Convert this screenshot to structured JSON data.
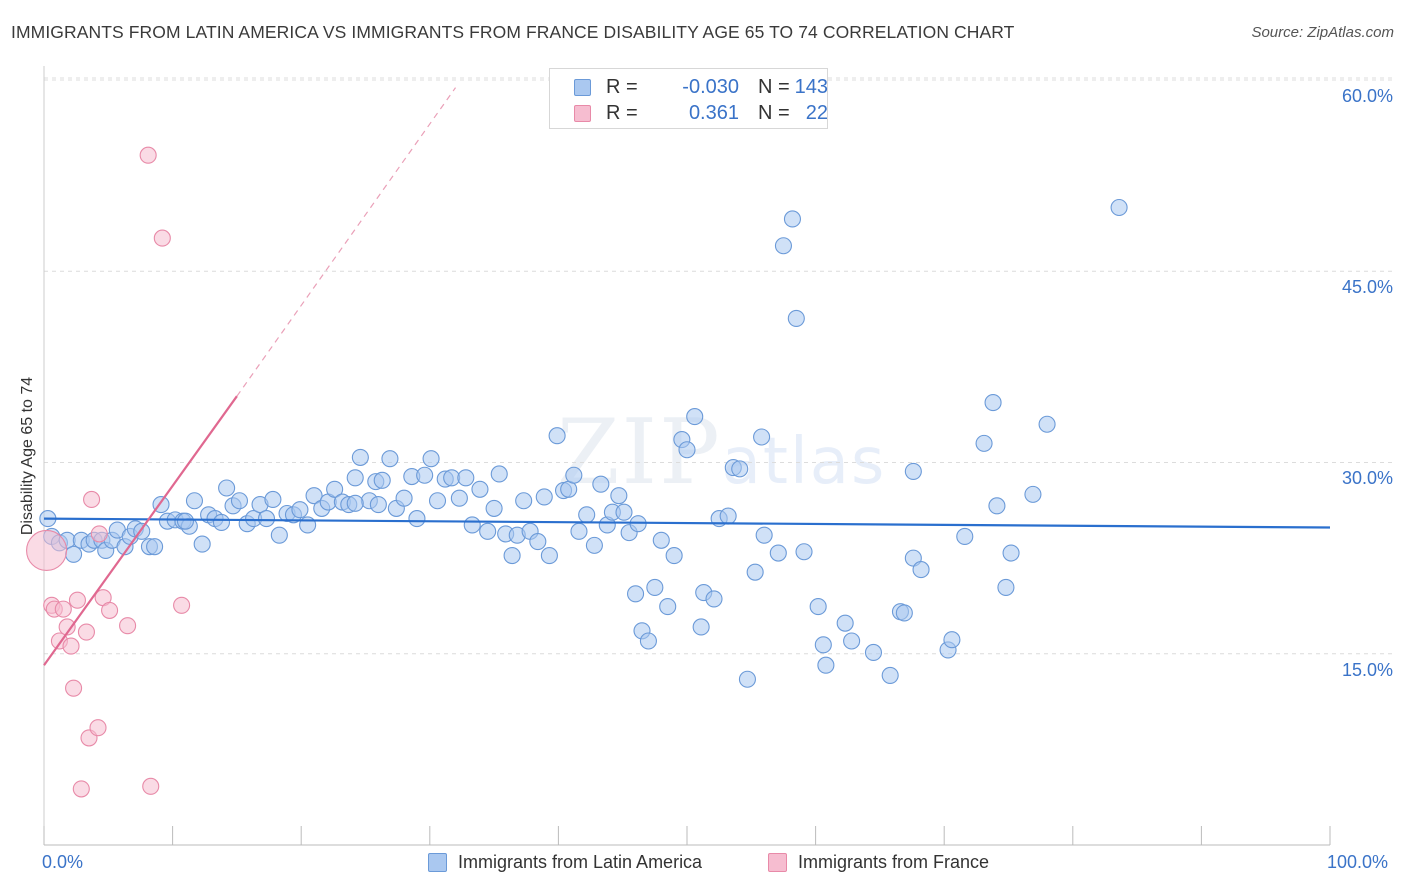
{
  "title": "IMMIGRANTS FROM LATIN AMERICA VS IMMIGRANTS FROM FRANCE DISABILITY AGE 65 TO 74 CORRELATION CHART",
  "source": "Source: ZipAtlas.com",
  "watermark": {
    "zip": "ZIP",
    "atlas": "atlas"
  },
  "legend": {
    "rows": [
      {
        "r_label": "R =",
        "r_value": "-0.030",
        "n_label": "N =",
        "n_value": "143"
      },
      {
        "r_label": "R =",
        "r_value": "0.361",
        "n_label": "N =",
        "n_value": "22"
      }
    ]
  },
  "bottom_legend": {
    "latin": "Immigrants from Latin America",
    "france": "Immigrants from France"
  },
  "colors": {
    "blue_fill": "#aac8f0",
    "blue_stroke": "#6b9ad8",
    "blue_line": "#2a6fce",
    "pink_fill": "#f6bdd0",
    "pink_stroke": "#e88aa8",
    "pink_line": "#e06890",
    "tick_text": "#3a73c8"
  },
  "chart_data": {
    "type": "scatter",
    "title": "IMMIGRANTS FROM LATIN AMERICA VS IMMIGRANTS FROM FRANCE DISABILITY AGE 65 TO 74 CORRELATION CHART",
    "xlabel": "",
    "ylabel": "Disability Age 65 to 74",
    "xlim": [
      0,
      100
    ],
    "ylim": [
      0,
      61.5
    ],
    "x_tick_labels": [
      "0.0%",
      "100.0%"
    ],
    "y_ticks": [
      15,
      30,
      45,
      60
    ],
    "y_tick_labels": [
      "15.0%",
      "30.0%",
      "45.0%",
      "60.0%"
    ],
    "grid": true,
    "legend_position": "top-center",
    "series": [
      {
        "name": "Immigrants from Latin America",
        "color": "#aac8f0",
        "trend": {
          "x0": 0,
          "y0": 25.6,
          "x1": 100,
          "y1": 24.9
        },
        "points": [
          [
            0.3,
            25.6
          ],
          [
            0.6,
            24.2
          ],
          [
            1.2,
            23.7
          ],
          [
            1.8,
            23.9
          ],
          [
            2.3,
            22.8
          ],
          [
            2.9,
            23.9
          ],
          [
            3.5,
            23.6
          ],
          [
            3.9,
            23.9
          ],
          [
            4.5,
            23.9
          ],
          [
            4.8,
            23.1
          ],
          [
            5.3,
            23.9
          ],
          [
            5.7,
            24.7
          ],
          [
            6.3,
            23.4
          ],
          [
            6.7,
            24.2
          ],
          [
            7.1,
            24.8
          ],
          [
            7.6,
            24.6
          ],
          [
            8.2,
            23.4
          ],
          [
            8.6,
            23.4
          ],
          [
            9.1,
            26.7
          ],
          [
            9.6,
            25.4
          ],
          [
            10.2,
            25.5
          ],
          [
            10.8,
            25.4
          ],
          [
            11.3,
            25.0
          ],
          [
            11.7,
            27.0
          ],
          [
            12.3,
            23.6
          ],
          [
            12.8,
            25.9
          ],
          [
            13.3,
            25.6
          ],
          [
            13.8,
            25.3
          ],
          [
            14.2,
            28.0
          ],
          [
            14.7,
            26.6
          ],
          [
            15.2,
            27.0
          ],
          [
            15.8,
            25.2
          ],
          [
            16.3,
            25.6
          ],
          [
            16.8,
            26.7
          ],
          [
            17.3,
            25.6
          ],
          [
            17.8,
            27.1
          ],
          [
            18.3,
            24.3
          ],
          [
            18.9,
            26.0
          ],
          [
            19.4,
            25.9
          ],
          [
            19.9,
            26.3
          ],
          [
            20.5,
            25.1
          ],
          [
            21.0,
            27.4
          ],
          [
            21.6,
            26.4
          ],
          [
            22.1,
            26.9
          ],
          [
            22.6,
            27.9
          ],
          [
            23.2,
            26.9
          ],
          [
            23.7,
            26.7
          ],
          [
            24.2,
            28.8
          ],
          [
            24.6,
            30.4
          ],
          [
            25.3,
            27.0
          ],
          [
            25.8,
            28.5
          ],
          [
            26.3,
            28.6
          ],
          [
            26.9,
            30.3
          ],
          [
            27.4,
            26.4
          ],
          [
            28.0,
            27.2
          ],
          [
            28.6,
            28.9
          ],
          [
            29.0,
            25.6
          ],
          [
            29.6,
            29.0
          ],
          [
            30.1,
            30.3
          ],
          [
            30.6,
            27.0
          ],
          [
            31.2,
            28.7
          ],
          [
            31.7,
            28.8
          ],
          [
            32.3,
            27.2
          ],
          [
            32.8,
            28.8
          ],
          [
            33.3,
            25.1
          ],
          [
            33.9,
            27.9
          ],
          [
            34.5,
            24.6
          ],
          [
            35.0,
            26.4
          ],
          [
            35.4,
            29.1
          ],
          [
            35.9,
            24.4
          ],
          [
            36.4,
            22.7
          ],
          [
            36.8,
            24.3
          ],
          [
            37.3,
            27.0
          ],
          [
            37.8,
            24.6
          ],
          [
            38.4,
            23.8
          ],
          [
            38.9,
            27.3
          ],
          [
            39.3,
            22.7
          ],
          [
            39.9,
            32.1
          ],
          [
            40.4,
            27.8
          ],
          [
            40.8,
            27.9
          ],
          [
            41.2,
            29.0
          ],
          [
            41.6,
            24.6
          ],
          [
            42.2,
            25.9
          ],
          [
            42.8,
            23.5
          ],
          [
            43.3,
            28.3
          ],
          [
            43.8,
            25.1
          ],
          [
            44.2,
            26.1
          ],
          [
            44.7,
            27.4
          ],
          [
            45.1,
            26.1
          ],
          [
            45.5,
            24.5
          ],
          [
            46.0,
            19.7
          ],
          [
            46.2,
            25.2
          ],
          [
            46.5,
            16.8
          ],
          [
            47.0,
            16.0
          ],
          [
            47.5,
            20.2
          ],
          [
            48.0,
            23.9
          ],
          [
            48.5,
            18.7
          ],
          [
            49.0,
            22.7
          ],
          [
            49.6,
            31.8
          ],
          [
            50.0,
            31.0
          ],
          [
            50.6,
            33.6
          ],
          [
            51.1,
            17.1
          ],
          [
            51.3,
            19.8
          ],
          [
            52.1,
            19.3
          ],
          [
            52.5,
            25.6
          ],
          [
            53.2,
            25.8
          ],
          [
            53.6,
            29.6
          ],
          [
            54.1,
            29.5
          ],
          [
            54.7,
            13.0
          ],
          [
            55.3,
            21.4
          ],
          [
            55.8,
            32.0
          ],
          [
            56.0,
            24.3
          ],
          [
            57.1,
            22.9
          ],
          [
            57.5,
            47.0
          ],
          [
            58.2,
            49.1
          ],
          [
            58.5,
            41.3
          ],
          [
            59.1,
            23.0
          ],
          [
            60.2,
            18.7
          ],
          [
            60.6,
            15.7
          ],
          [
            60.8,
            14.1
          ],
          [
            62.3,
            17.4
          ],
          [
            62.8,
            16.0
          ],
          [
            64.5,
            15.1
          ],
          [
            65.8,
            13.3
          ],
          [
            66.6,
            18.3
          ],
          [
            66.9,
            18.2
          ],
          [
            67.6,
            22.5
          ],
          [
            68.2,
            21.6
          ],
          [
            70.3,
            15.3
          ],
          [
            70.6,
            16.1
          ],
          [
            71.6,
            24.2
          ],
          [
            73.1,
            31.5
          ],
          [
            73.8,
            34.7
          ],
          [
            74.1,
            26.6
          ],
          [
            74.8,
            20.2
          ],
          [
            75.2,
            22.9
          ],
          [
            76.9,
            27.5
          ],
          [
            78.0,
            33.0
          ],
          [
            83.6,
            50.0
          ],
          [
            67.6,
            29.3
          ],
          [
            24.2,
            26.8
          ],
          [
            26.0,
            26.7
          ],
          [
            11.0,
            25.4
          ]
        ]
      },
      {
        "name": "Immigrants from France",
        "color": "#f6bdd0",
        "trend": {
          "x0": 0,
          "y0": 14.1,
          "x1": 15,
          "y1": 35.2,
          "dashed_to": {
            "x": 32,
            "y": 59.4
          }
        },
        "points": [
          [
            0.2,
            23.1
          ],
          [
            0.6,
            18.8
          ],
          [
            0.8,
            18.5
          ],
          [
            1.2,
            16.0
          ],
          [
            1.5,
            18.5
          ],
          [
            1.8,
            17.1
          ],
          [
            2.1,
            15.6
          ],
          [
            2.3,
            12.3
          ],
          [
            2.6,
            19.2
          ],
          [
            3.3,
            16.7
          ],
          [
            3.5,
            8.4
          ],
          [
            3.7,
            27.1
          ],
          [
            4.2,
            9.2
          ],
          [
            4.3,
            24.4
          ],
          [
            4.6,
            19.4
          ],
          [
            5.1,
            18.4
          ],
          [
            6.5,
            17.2
          ],
          [
            8.1,
            54.1
          ],
          [
            9.2,
            47.6
          ],
          [
            10.7,
            18.8
          ],
          [
            2.9,
            4.4
          ],
          [
            8.3,
            4.6
          ]
        ]
      }
    ]
  }
}
